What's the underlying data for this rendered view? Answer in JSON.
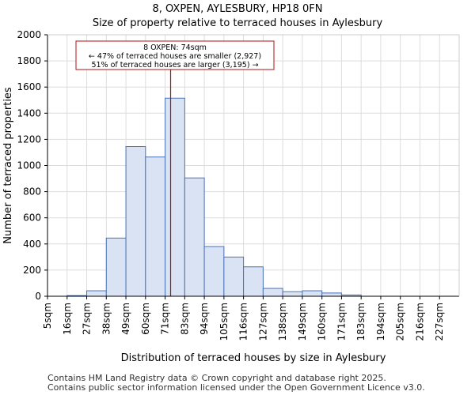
{
  "chart_data": {
    "type": "bar",
    "title": "8, OXPEN, AYLESBURY, HP18 0FN",
    "subtitle": "Size of property relative to terraced houses in Aylesbury",
    "xlabel": "Distribution of terraced houses by size in Aylesbury",
    "ylabel": "Number of terraced properties",
    "categories": [
      "5sqm",
      "16sqm",
      "27sqm",
      "38sqm",
      "49sqm",
      "60sqm",
      "71sqm",
      "83sqm",
      "94sqm",
      "105sqm",
      "116sqm",
      "127sqm",
      "138sqm",
      "149sqm",
      "160sqm",
      "171sqm",
      "183sqm",
      "194sqm",
      "205sqm",
      "216sqm",
      "227sqm"
    ],
    "values": [
      0,
      5,
      42,
      445,
      1145,
      1065,
      1515,
      905,
      380,
      300,
      225,
      60,
      35,
      42,
      25,
      10,
      0,
      0,
      0,
      0,
      0
    ],
    "yticks": [
      0,
      200,
      400,
      600,
      800,
      1000,
      1200,
      1400,
      1600,
      1800,
      2000
    ],
    "ylim": [
      0,
      2000
    ],
    "grid": true,
    "bar_color": "#dae3f3",
    "bar_edge_color": "#4a72b8",
    "marker": {
      "value": 74,
      "bin_position": 6.28,
      "color": "#b01010",
      "annotation": [
        "8 OXPEN: 74sqm",
        "← 47% of terraced houses are smaller (2,927)",
        "51% of terraced houses are larger (3,195) →"
      ]
    }
  },
  "footer": {
    "line1": "Contains HM Land Registry data © Crown copyright and database right 2025.",
    "line2": "Contains public sector information licensed under the Open Government Licence v3.0."
  }
}
